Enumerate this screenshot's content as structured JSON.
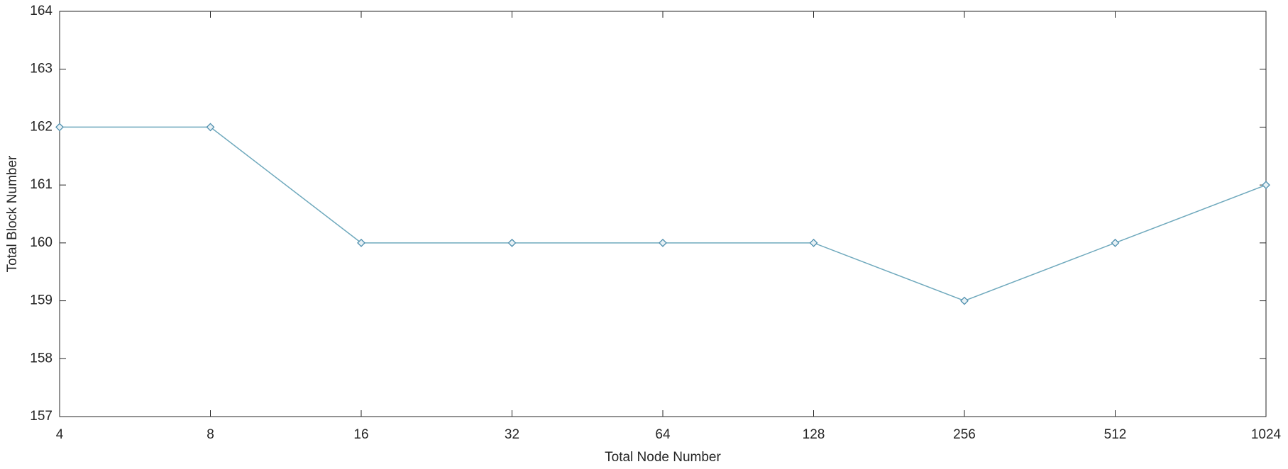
{
  "chart_data": {
    "type": "line",
    "x_label": "Total Node Number",
    "y_label": "Total Block Number",
    "x": [
      4,
      8,
      16,
      32,
      64,
      128,
      256,
      512,
      1024
    ],
    "series": [
      {
        "color": "#6fa9bd",
        "marker": "diamond",
        "values": [
          162,
          162,
          160,
          160,
          160,
          160,
          159,
          160,
          161
        ]
      }
    ],
    "xscale": "log",
    "xlim": [
      4,
      1024
    ],
    "xticks": [
      4,
      8,
      16,
      32,
      64,
      128,
      256,
      512,
      1024
    ],
    "ylim": [
      157,
      164
    ],
    "yticks": [
      157,
      158,
      159,
      160,
      161,
      162,
      163,
      164
    ],
    "grid": false
  }
}
